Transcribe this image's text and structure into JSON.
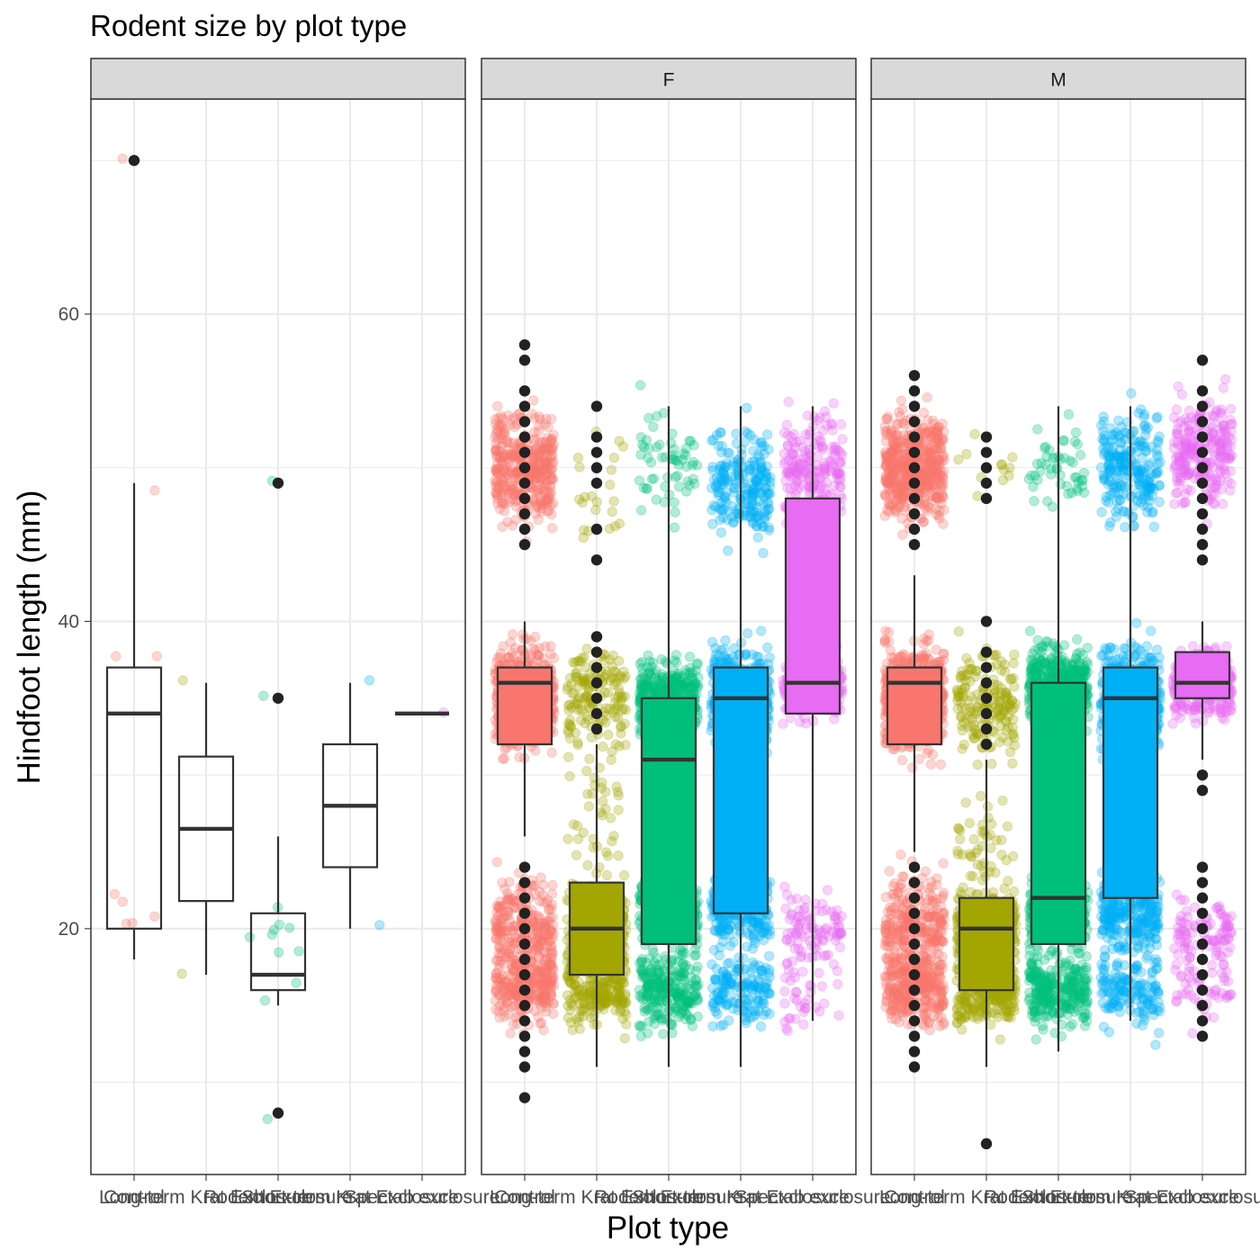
{
  "chart_data": {
    "type": "box",
    "title": "Rodent size by plot type",
    "xlabel": "Plot type",
    "ylabel": "Hindfoot length (mm)",
    "ylim": [
      4,
      74
    ],
    "yticks": [
      20,
      40,
      60
    ],
    "categories": [
      "Control",
      "Long-term Krat Exclosure",
      "Rodent Exclosure",
      "Short-term Krat Exclosure",
      "Spectab exclosure"
    ],
    "colors": {
      "Control": "#F8766D",
      "Long-term Krat Exclosure": "#A3A500",
      "Rodent Exclosure": "#00BF7D",
      "Short-term Krat Exclosure": "#00B0F6",
      "Spectab exclosure": "#E76BF3"
    },
    "panels": [
      {
        "strip": "",
        "fill_boxes": false,
        "boxes": [
          {
            "category": "Control",
            "lower_whisker": 18,
            "q1": 20,
            "median": 34,
            "q3": 37,
            "upper_whisker": 49,
            "outliers": [
              70
            ]
          },
          {
            "category": "Long-term Krat Exclosure",
            "lower_whisker": 17,
            "q1": 21.8,
            "median": 26.5,
            "q3": 31.2,
            "upper_whisker": 36,
            "outliers": []
          },
          {
            "category": "Rodent Exclosure",
            "lower_whisker": 15,
            "q1": 16,
            "median": 17,
            "q3": 21,
            "upper_whisker": 26,
            "outliers": [
              49,
              35,
              8
            ]
          },
          {
            "category": "Short-term Krat Exclosure",
            "lower_whisker": 20,
            "q1": 24,
            "median": 28,
            "q3": 32,
            "upper_whisker": 36,
            "outliers": []
          },
          {
            "category": "Spectab exclosure",
            "lower_whisker": 34,
            "q1": 34,
            "median": 34,
            "q3": 34,
            "upper_whisker": 34,
            "outliers": []
          }
        ]
      },
      {
        "strip": "F",
        "fill_boxes": true,
        "boxes": [
          {
            "category": "Control",
            "lower_whisker": 26,
            "q1": 32,
            "median": 36,
            "q3": 37,
            "upper_whisker": 40,
            "outliers": [
              58,
              57,
              55,
              54,
              53,
              52,
              51,
              50,
              49,
              48,
              47,
              46,
              45,
              24,
              23,
              22,
              21,
              20,
              19,
              18,
              17,
              16,
              15,
              14,
              13,
              12,
              11,
              9
            ]
          },
          {
            "category": "Long-term Krat Exclosure",
            "lower_whisker": 11,
            "q1": 17,
            "median": 20,
            "q3": 23,
            "upper_whisker": 32,
            "outliers": [
              54,
              52,
              51,
              50,
              49,
              46,
              44,
              39,
              38,
              37,
              36,
              35,
              34,
              33
            ]
          },
          {
            "category": "Rodent Exclosure",
            "lower_whisker": 11,
            "q1": 19,
            "median": 31,
            "q3": 35,
            "upper_whisker": 54,
            "outliers": []
          },
          {
            "category": "Short-term Krat Exclosure",
            "lower_whisker": 11,
            "q1": 21,
            "median": 35,
            "q3": 37,
            "upper_whisker": 54,
            "outliers": []
          },
          {
            "category": "Spectab exclosure",
            "lower_whisker": 14,
            "q1": 34,
            "median": 36,
            "q3": 48,
            "upper_whisker": 54,
            "outliers": []
          }
        ]
      },
      {
        "strip": "M",
        "fill_boxes": true,
        "boxes": [
          {
            "category": "Control",
            "lower_whisker": 25,
            "q1": 32,
            "median": 36,
            "q3": 37,
            "upper_whisker": 43,
            "outliers": [
              56,
              55,
              54,
              53,
              52,
              51,
              50,
              49,
              48,
              47,
              46,
              45,
              24,
              23,
              22,
              21,
              20,
              19,
              18,
              17,
              16,
              15,
              14,
              13,
              12,
              11
            ]
          },
          {
            "category": "Long-term Krat Exclosure",
            "lower_whisker": 11,
            "q1": 16,
            "median": 20,
            "q3": 22,
            "upper_whisker": 31,
            "outliers": [
              52,
              51,
              50,
              49,
              48,
              40,
              38,
              37,
              36,
              35,
              34,
              33,
              32,
              6
            ]
          },
          {
            "category": "Rodent Exclosure",
            "lower_whisker": 12,
            "q1": 19,
            "median": 22,
            "q3": 36,
            "upper_whisker": 54,
            "outliers": []
          },
          {
            "category": "Short-term Krat Exclosure",
            "lower_whisker": 14,
            "q1": 22,
            "median": 35,
            "q3": 37,
            "upper_whisker": 54,
            "outliers": []
          },
          {
            "category": "Spectab exclosure",
            "lower_whisker": 31,
            "q1": 35,
            "median": 36,
            "q3": 38,
            "upper_whisker": 40,
            "outliers": [
              57,
              55,
              54,
              53,
              52,
              51,
              50,
              49,
              48,
              47,
              46,
              45,
              44,
              30,
              29,
              24,
              23,
              22,
              21,
              20,
              19,
              18,
              17,
              16,
              15,
              14,
              13
            ]
          }
        ]
      }
    ],
    "jitter_points": {
      "opacity": 0.3,
      "panels": [
        {
          "groups": [
            {
              "category": "Control",
              "clusters": [
                {
                  "center": 70,
                  "spread": 0,
                  "n": 1
                },
                {
                  "center": 37,
                  "spread": 1,
                  "n": 2
                },
                {
                  "center": 21,
                  "spread": 2,
                  "n": 5
                },
                {
                  "center": 48.5,
                  "spread": 0,
                  "n": 1
                }
              ]
            },
            {
              "category": "Long-term Krat Exclosure",
              "clusters": [
                {
                  "center": 36,
                  "spread": 0,
                  "n": 1
                },
                {
                  "center": 17,
                  "spread": 0,
                  "n": 1
                }
              ]
            },
            {
              "category": "Rodent Exclosure",
              "clusters": [
                {
                  "center": 49,
                  "spread": 0,
                  "n": 1
                },
                {
                  "center": 35,
                  "spread": 0,
                  "n": 1
                },
                {
                  "center": 19,
                  "spread": 4,
                  "n": 10
                },
                {
                  "center": 8,
                  "spread": 0,
                  "n": 1
                }
              ]
            },
            {
              "category": "Short-term Krat Exclosure",
              "clusters": [
                {
                  "center": 36,
                  "spread": 0,
                  "n": 1
                },
                {
                  "center": 20,
                  "spread": 0,
                  "n": 1
                }
              ]
            },
            {
              "category": "Spectab exclosure",
              "clusters": [
                {
                  "center": 34,
                  "spread": 0,
                  "n": 1
                }
              ]
            }
          ]
        },
        {
          "groups": [
            {
              "category": "Control",
              "clusters": [
                {
                  "center": 50,
                  "spread": 3,
                  "n": 380
                },
                {
                  "center": 35,
                  "spread": 3,
                  "n": 500
                },
                {
                  "center": 20,
                  "spread": 3,
                  "n": 280
                },
                {
                  "center": 16,
                  "spread": 2,
                  "n": 220
                }
              ]
            },
            {
              "category": "Long-term Krat Exclosure",
              "clusters": [
                {
                  "center": 49,
                  "spread": 3,
                  "n": 22
                },
                {
                  "center": 35,
                  "spread": 3,
                  "n": 150
                },
                {
                  "center": 28,
                  "spread": 4,
                  "n": 40
                },
                {
                  "center": 20,
                  "spread": 3,
                  "n": 300
                },
                {
                  "center": 16,
                  "spread": 2,
                  "n": 200
                }
              ]
            },
            {
              "category": "Rodent Exclosure",
              "clusters": [
                {
                  "center": 50,
                  "spread": 3,
                  "n": 60
                },
                {
                  "center": 35,
                  "spread": 2,
                  "n": 400
                },
                {
                  "center": 21,
                  "spread": 2,
                  "n": 240
                },
                {
                  "center": 16,
                  "spread": 2,
                  "n": 240
                }
              ]
            },
            {
              "category": "Short-term Krat Exclosure",
              "clusters": [
                {
                  "center": 49,
                  "spread": 3,
                  "n": 220
                },
                {
                  "center": 35,
                  "spread": 3,
                  "n": 400
                },
                {
                  "center": 21,
                  "spread": 2,
                  "n": 200
                },
                {
                  "center": 16,
                  "spread": 2,
                  "n": 150
                }
              ]
            },
            {
              "category": "Spectab exclosure",
              "clusters": [
                {
                  "center": 50,
                  "spread": 3,
                  "n": 200
                },
                {
                  "center": 36,
                  "spread": 2,
                  "n": 260
                },
                {
                  "center": 20,
                  "spread": 2,
                  "n": 90
                },
                {
                  "center": 16,
                  "spread": 2,
                  "n": 40
                }
              ]
            }
          ]
        },
        {
          "groups": [
            {
              "category": "Control",
              "clusters": [
                {
                  "center": 50,
                  "spread": 3,
                  "n": 500
                },
                {
                  "center": 35,
                  "spread": 3,
                  "n": 550
                },
                {
                  "center": 20,
                  "spread": 3,
                  "n": 300
                },
                {
                  "center": 16,
                  "spread": 2,
                  "n": 250
                }
              ]
            },
            {
              "category": "Long-term Krat Exclosure",
              "clusters": [
                {
                  "center": 50,
                  "spread": 2,
                  "n": 12
                },
                {
                  "center": 35,
                  "spread": 3,
                  "n": 170
                },
                {
                  "center": 25,
                  "spread": 3,
                  "n": 50
                },
                {
                  "center": 20,
                  "spread": 2,
                  "n": 330
                },
                {
                  "center": 16,
                  "spread": 2,
                  "n": 270
                }
              ]
            },
            {
              "category": "Rodent Exclosure",
              "clusters": [
                {
                  "center": 50,
                  "spread": 3,
                  "n": 50
                },
                {
                  "center": 36,
                  "spread": 2,
                  "n": 420
                },
                {
                  "center": 21,
                  "spread": 2,
                  "n": 250
                },
                {
                  "center": 16,
                  "spread": 2,
                  "n": 270
                }
              ]
            },
            {
              "category": "Short-term Krat Exclosure",
              "clusters": [
                {
                  "center": 50,
                  "spread": 3,
                  "n": 230
                },
                {
                  "center": 35,
                  "spread": 3,
                  "n": 450
                },
                {
                  "center": 21,
                  "spread": 2,
                  "n": 250
                },
                {
                  "center": 16,
                  "spread": 2,
                  "n": 150
                }
              ]
            },
            {
              "category": "Spectab exclosure",
              "clusters": [
                {
                  "center": 51,
                  "spread": 3,
                  "n": 240
                },
                {
                  "center": 36,
                  "spread": 2,
                  "n": 300
                },
                {
                  "center": 20,
                  "spread": 2,
                  "n": 90
                },
                {
                  "center": 16,
                  "spread": 2,
                  "n": 50
                }
              ]
            }
          ]
        }
      ]
    }
  }
}
